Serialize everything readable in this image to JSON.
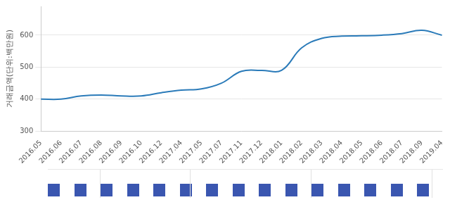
{
  "chart_data": {
    "type": "line",
    "y_label": "거래금액(단위:백만원)",
    "categories": [
      "2016.05",
      "2016.06",
      "2016.07",
      "2016.08",
      "2016.09",
      "2016.10",
      "2016.12",
      "2017.04",
      "2017.05",
      "2017.07",
      "2017.11",
      "2017.12",
      "2018.01",
      "2018.02",
      "2018.03",
      "2018.04",
      "2018.05",
      "2018.06",
      "2018.07",
      "2018.09",
      "2019.04"
    ],
    "values": [
      400,
      400,
      410,
      413,
      410,
      410,
      420,
      428,
      432,
      450,
      487,
      490,
      490,
      560,
      590,
      597,
      598,
      600,
      605,
      615,
      600
    ],
    "color": "#2b7bb9",
    "ylim": [
      300,
      690
    ],
    "yticks": [
      300,
      400,
      500,
      600
    ],
    "grid": true
  }
}
